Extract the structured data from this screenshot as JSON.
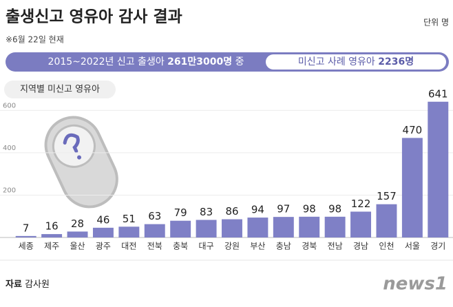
{
  "chart_data": {
    "type": "bar",
    "title": "출생신고 영유아 감사 결과",
    "unit": "단위 명",
    "note": "※6월 22일 현재",
    "banner_left": [
      "2015~2022년 신고 출생아",
      "261만3000명",
      "중"
    ],
    "banner_right": [
      "미신고 사례 영유아",
      "2236명"
    ],
    "subtitle": "지역별 미신고 영유아",
    "categories": [
      "세종",
      "제주",
      "울산",
      "광주",
      "대전",
      "전북",
      "충북",
      "대구",
      "강원",
      "부산",
      "충남",
      "경북",
      "전남",
      "경남",
      "인천",
      "서울",
      "경기"
    ],
    "values": [
      7,
      16,
      28,
      46,
      51,
      63,
      79,
      83,
      86,
      94,
      97,
      98,
      98,
      122,
      157,
      470,
      641
    ],
    "color": "#7f80c6",
    "ylim": [
      0,
      650
    ],
    "yticks": [
      200,
      400,
      600
    ],
    "grid": true,
    "source_label": "자료",
    "source": "감사원",
    "logo": "news1"
  }
}
